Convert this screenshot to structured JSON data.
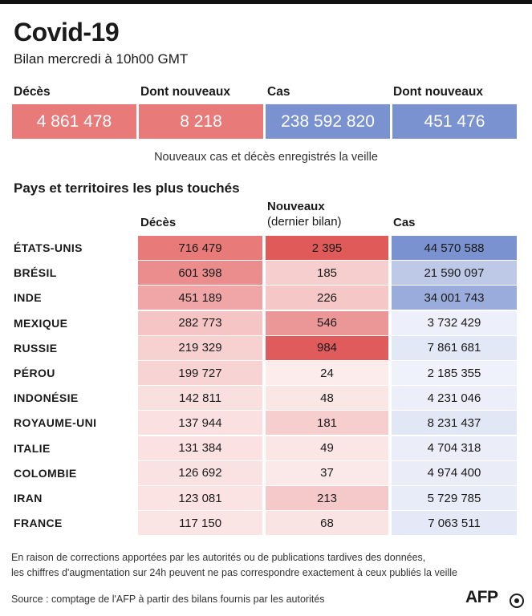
{
  "header": {
    "title": "Covid-19",
    "subtitle": "Bilan mercredi à 10h00 GMT"
  },
  "summary": {
    "labels": [
      "Décès",
      "Dont nouveaux",
      "Cas",
      "Dont nouveaux"
    ],
    "values": [
      "4 861 478",
      "8 218",
      "238 592 820",
      "451 476"
    ],
    "colors": [
      "#e87a7a",
      "#e87a7a",
      "#7a92cf",
      "#7a92cf"
    ],
    "note": "Nouveaux cas et décès enregistrés la veille"
  },
  "table_section": {
    "title": "Pays et territoires les plus touchés",
    "col_deaths": "Décès",
    "col_new_line1": "Nouveaux",
    "col_new_line2": "(dernier bilan)",
    "col_cases": "Cas"
  },
  "colors": {
    "deaths_scale": [
      "#fce9e9",
      "#e87a7a"
    ],
    "new_scale": [
      "#fdf2f2",
      "#e05a5a"
    ],
    "cases_scale": [
      "#f1f3fb",
      "#7a92cf"
    ]
  },
  "chart_data": {
    "type": "table",
    "title": "Pays et territoires les plus touchés",
    "columns": [
      "Décès",
      "Nouveaux (dernier bilan)",
      "Cas"
    ],
    "rows": [
      {
        "country": "ÉTATS-UNIS",
        "deaths": 716479,
        "new": 2395,
        "cases": 44570588,
        "deaths_label": "716 479",
        "new_label": "2 395",
        "cases_label": "44 570 588"
      },
      {
        "country": "BRÉSIL",
        "deaths": 601398,
        "new": 185,
        "cases": 21590097,
        "deaths_label": "601 398",
        "new_label": "185",
        "cases_label": "21 590 097"
      },
      {
        "country": "INDE",
        "deaths": 451189,
        "new": 226,
        "cases": 34001743,
        "deaths_label": "451 189",
        "new_label": "226",
        "cases_label": "34 001 743"
      },
      {
        "country": "MEXIQUE",
        "deaths": 282773,
        "new": 546,
        "cases": 3732429,
        "deaths_label": "282 773",
        "new_label": "546",
        "cases_label": "3 732 429"
      },
      {
        "country": "RUSSIE",
        "deaths": 219329,
        "new": 984,
        "cases": 7861681,
        "deaths_label": "219 329",
        "new_label": "984",
        "cases_label": "7 861 681"
      },
      {
        "country": "PÉROU",
        "deaths": 199727,
        "new": 24,
        "cases": 2185355,
        "deaths_label": "199 727",
        "new_label": "24",
        "cases_label": "2 185 355"
      },
      {
        "country": "INDONÉSIE",
        "deaths": 142811,
        "new": 48,
        "cases": 4231046,
        "deaths_label": "142 811",
        "new_label": "48",
        "cases_label": "4 231 046"
      },
      {
        "country": "ROYAUME-UNI",
        "deaths": 137944,
        "new": 181,
        "cases": 8231437,
        "deaths_label": "137 944",
        "new_label": "181",
        "cases_label": "8 231 437"
      },
      {
        "country": "ITALIE",
        "deaths": 131384,
        "new": 49,
        "cases": 4704318,
        "deaths_label": "131 384",
        "new_label": "49",
        "cases_label": "4 704 318"
      },
      {
        "country": "COLOMBIE",
        "deaths": 126692,
        "new": 37,
        "cases": 4974400,
        "deaths_label": "126 692",
        "new_label": "37",
        "cases_label": "4 974 400"
      },
      {
        "country": "IRAN",
        "deaths": 123081,
        "new": 213,
        "cases": 5729785,
        "deaths_label": "123 081",
        "new_label": "213",
        "cases_label": "5 729 785"
      },
      {
        "country": "FRANCE",
        "deaths": 117150,
        "new": 68,
        "cases": 7063511,
        "deaths_label": "117 150",
        "new_label": "68",
        "cases_label": "7 063 511"
      }
    ]
  },
  "footer": {
    "note_line1": "En raison de corrections apportées par les autorités ou de publications tardives des données,",
    "note_line2": "les chiffres d'augmentation sur 24h peuvent ne pas correspondre exactement à ceux publiés la veille",
    "source": "Source : comptage de l'AFP à partir des bilans fournis par les autorités",
    "logo": "AFP"
  }
}
